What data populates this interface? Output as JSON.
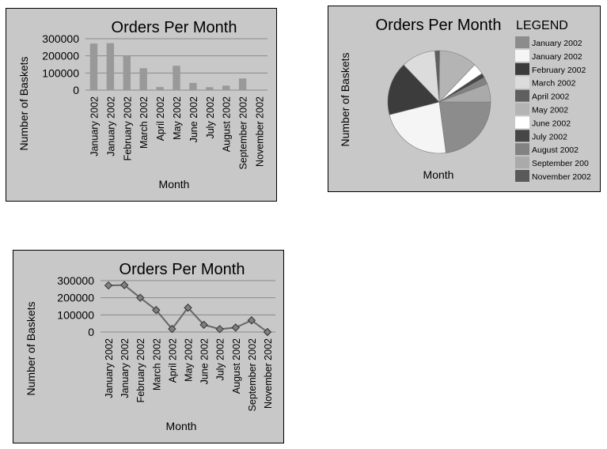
{
  "chart_data": [
    {
      "type": "bar",
      "title": "Orders Per Month",
      "xlabel": "Month",
      "ylabel": "Number of Baskets",
      "ylim": [
        0,
        300000
      ],
      "yticks": [
        "300000",
        "200000",
        "100000",
        "0"
      ],
      "grid": true,
      "categories": [
        "January 2002",
        "January 2002",
        "February 2002",
        "March 2002",
        "April 2002",
        "May 2002",
        "June 2002",
        "July 2002",
        "August 2002",
        "September 2002",
        "November 2002"
      ],
      "values": [
        272000,
        274000,
        200000,
        128000,
        18000,
        142000,
        42000,
        17000,
        26000,
        68000,
        0
      ],
      "colors": {
        "bar": "#999999"
      }
    },
    {
      "type": "pie",
      "title": "Orders Per Month",
      "xlabel": "Month",
      "ylabel": "Number of Baskets",
      "legend_title": "LEGEND",
      "legend_position": "right",
      "categories": [
        "January 2002",
        "January 2002",
        "February 2002",
        "March 2002",
        "April 2002",
        "May 2002",
        "June 2002",
        "July 2002",
        "August 2002",
        "September 2002",
        "November 2002"
      ],
      "legend_labels": [
        "January 2002",
        "January 2002",
        "February 2002",
        "March 2002",
        "April 2002",
        "May 2002",
        "June 2002",
        "July 2002",
        "August 2002",
        "September 200",
        "November 2002"
      ],
      "values": [
        272000,
        274000,
        200000,
        128000,
        18000,
        142000,
        42000,
        17000,
        26000,
        68000,
        0
      ],
      "colors": [
        "#8c8c8c",
        "#f5f5f5",
        "#3c3c3c",
        "#dcdcdc",
        "#5f5f5f",
        "#b4b4b4",
        "#ffffff",
        "#464646",
        "#828282",
        "#aaaaaa",
        "#5a5a5a"
      ]
    },
    {
      "type": "line",
      "title": "Orders Per Month",
      "xlabel": "Month",
      "ylabel": "Number of Baskets",
      "ylim": [
        0,
        300000
      ],
      "yticks": [
        "300000",
        "200000",
        "100000",
        "0"
      ],
      "grid": true,
      "categories": [
        "January 2002",
        "January 2002",
        "February 2002",
        "March 2002",
        "April 2002",
        "May 2002",
        "June 2002",
        "July 2002",
        "August 2002",
        "September 2002",
        "November 2002"
      ],
      "values": [
        272000,
        274000,
        200000,
        128000,
        18000,
        142000,
        42000,
        17000,
        26000,
        68000,
        0
      ],
      "colors": {
        "line": "#666666",
        "marker": "#808080"
      }
    }
  ]
}
